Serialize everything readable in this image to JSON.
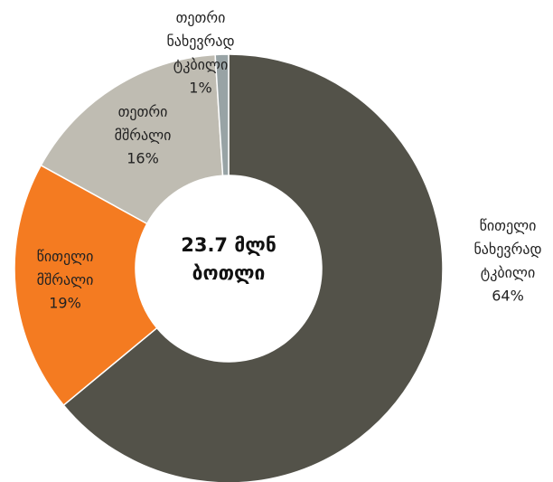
{
  "chart_data": {
    "type": "donut",
    "center_text": [
      "23.7 მლნ",
      "ბოთლი"
    ],
    "categories": [
      "წითელი ნახევრად ტკბილი",
      "წითელი მშრალი",
      "თეთრი მშრალი",
      "თეთრი ნახევრად ტკბილი"
    ],
    "values": [
      64,
      19,
      16,
      1
    ],
    "value_labels": [
      "64%",
      "19%",
      "16%",
      "1%"
    ],
    "colors": [
      "#535249",
      "#f47b21",
      "#bfbcb2",
      "#98a3a5"
    ]
  }
}
